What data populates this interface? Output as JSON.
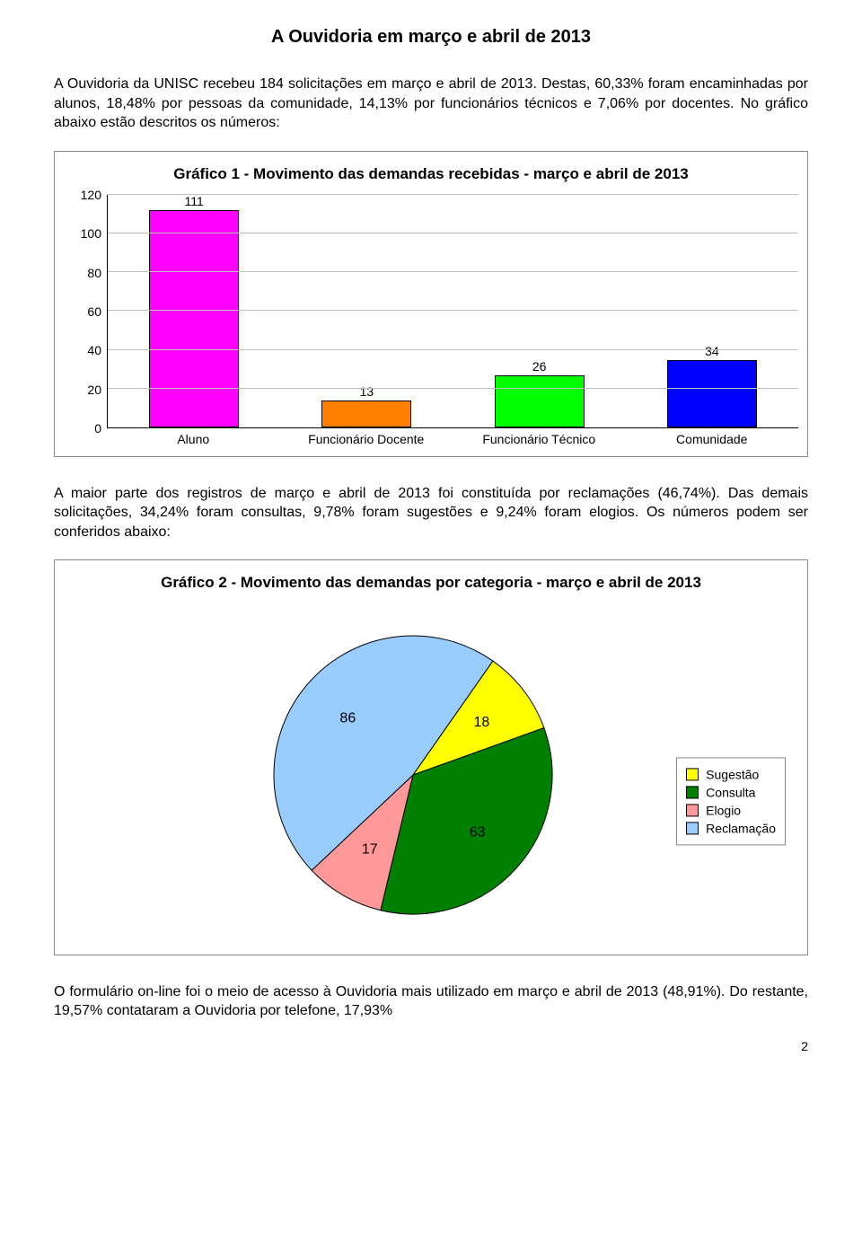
{
  "page_title": "A Ouvidoria em março e abril de 2013",
  "paragraph1": "A Ouvidoria da UNISC recebeu 184 solicitações em março e abril de 2013. Destas, 60,33% foram encaminhadas por alunos, 18,48% por pessoas da comunidade, 14,13% por funcionários técnicos e 7,06% por docentes. No gráfico abaixo estão descritos os números:",
  "paragraph2": "A maior parte dos registros de março e abril de 2013 foi constituída por reclamações (46,74%). Das demais solicitações, 34,24% foram consultas, 9,78% foram sugestões e 9,24% foram elogios. Os números podem ser conferidos abaixo:",
  "paragraph3": "O formulário on-line foi o meio de acesso à Ouvidoria mais utilizado em março e abril de 2013 (48,91%). Do restante, 19,57% contataram a Ouvidoria por telefone, 17,93%",
  "page_number": "2",
  "chart1": {
    "type": "bar",
    "title": "Gráfico 1 - Movimento das demandas recebidas - março e abril de 2013",
    "categories": [
      "Aluno",
      "Funcionário Docente",
      "Funcionário Técnico",
      "Comunidade"
    ],
    "values": [
      111,
      13,
      26,
      34
    ],
    "bar_colors": [
      "#ff00ff",
      "#ff8000",
      "#00ff00",
      "#0000ff"
    ],
    "ymax": 120,
    "ytick_step": 20,
    "yticks": [
      "0",
      "20",
      "40",
      "60",
      "80",
      "100",
      "120"
    ],
    "grid_color": "#c0c0c0",
    "axis_color": "#000000",
    "background": "#ffffff",
    "font_size_title": 17,
    "font_size_labels": 14
  },
  "chart2": {
    "type": "pie",
    "title": "Gráfico 2 - Movimento das demandas por categoria - março e abril de 2013",
    "slices": [
      {
        "label": "Sugestão",
        "value": 18,
        "color": "#ffff00"
      },
      {
        "label": "Consulta",
        "value": 63,
        "color": "#008000"
      },
      {
        "label": "Elogio",
        "value": 17,
        "color": "#ff9999"
      },
      {
        "label": "Reclamação",
        "value": 86,
        "color": "#99ccff"
      }
    ],
    "start_angle_deg": -55,
    "border_color": "#000000",
    "background": "#ffffff",
    "font_size_title": 17,
    "font_size_labels": 14
  }
}
